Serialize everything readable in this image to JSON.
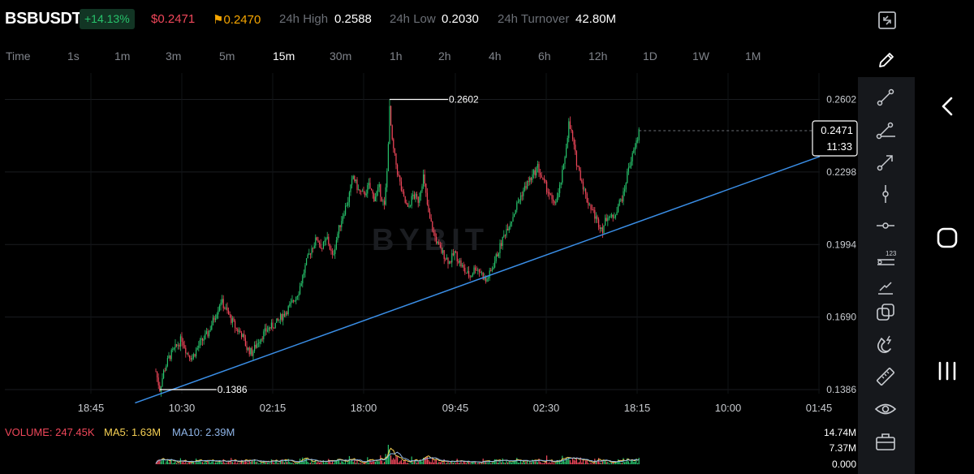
{
  "header": {
    "symbol": "BSBUSDT",
    "change": "+14.13%",
    "last_price": "$0.2471",
    "mark_price": "0.2470",
    "high_label": "24h High",
    "high_value": "0.2588",
    "low_label": "24h Low",
    "low_value": "0.2030",
    "turnover_label": "24h Turnover",
    "turnover_value": "42.80M"
  },
  "timeframes": [
    "Time",
    "1s",
    "1m",
    "3m",
    "5m",
    "15m",
    "30m",
    "1h",
    "2h",
    "4h",
    "6h",
    "12h",
    "1D",
    "1W",
    "1M"
  ],
  "active_timeframe": "15m",
  "colors": {
    "up": "#27c26b",
    "down": "#f0475a",
    "trendline": "#3a8ee6",
    "mark": "#f7a600",
    "ma5": "#f7d154",
    "ma10": "#8fb5e8"
  },
  "volume_panel": {
    "volume_label": "VOLUME: 247.45K",
    "ma5_label": "MA5: 1.63M",
    "ma10_label": "MA10: 2.39M",
    "axis_ticks": [
      "14.74M",
      "7.37M",
      "0.000"
    ]
  },
  "chart_data": {
    "type": "candlestick",
    "y_ticks": [
      0.2602,
      0.2298,
      0.1994,
      0.169,
      0.1386
    ],
    "y_tick_labels": [
      "0.2602",
      "0.2298",
      "0.1994",
      "0.1690",
      "0.1386"
    ],
    "ylim": [
      0.1316,
      0.268
    ],
    "x_tick_labels": [
      "18:45",
      "10:30",
      "02:15",
      "18:00",
      "09:45",
      "02:30",
      "18:15",
      "10:00",
      "01:45"
    ],
    "high_annotation": "0.2602",
    "low_annotation": "0.1386",
    "last_price_tag": "0.2471",
    "countdown_tag": "11:33",
    "watermark": "BYBIT",
    "price_path": [
      [
        0,
        0.1462
      ],
      [
        3,
        0.1386
      ],
      [
        6,
        0.146
      ],
      [
        10,
        0.152
      ],
      [
        15,
        0.156
      ],
      [
        20,
        0.16
      ],
      [
        24,
        0.154
      ],
      [
        28,
        0.152
      ],
      [
        34,
        0.158
      ],
      [
        40,
        0.162
      ],
      [
        46,
        0.17
      ],
      [
        50,
        0.176
      ],
      [
        54,
        0.172
      ],
      [
        58,
        0.168
      ],
      [
        62,
        0.164
      ],
      [
        66,
        0.162
      ],
      [
        70,
        0.156
      ],
      [
        74,
        0.154
      ],
      [
        80,
        0.16
      ],
      [
        86,
        0.164
      ],
      [
        92,
        0.166
      ],
      [
        98,
        0.17
      ],
      [
        104,
        0.174
      ],
      [
        110,
        0.18
      ],
      [
        116,
        0.192
      ],
      [
        120,
        0.198
      ],
      [
        124,
        0.202
      ],
      [
        128,
        0.198
      ],
      [
        132,
        0.202
      ],
      [
        136,
        0.194
      ],
      [
        140,
        0.204
      ],
      [
        144,
        0.212
      ],
      [
        148,
        0.218
      ],
      [
        152,
        0.228
      ],
      [
        156,
        0.222
      ],
      [
        160,
        0.22
      ],
      [
        164,
        0.224
      ],
      [
        168,
        0.219
      ],
      [
        172,
        0.223
      ],
      [
        176,
        0.215
      ],
      [
        178,
        0.23
      ],
      [
        180,
        0.256
      ],
      [
        182,
        0.242
      ],
      [
        186,
        0.23
      ],
      [
        190,
        0.22
      ],
      [
        194,
        0.214
      ],
      [
        198,
        0.22
      ],
      [
        202,
        0.218
      ],
      [
        206,
        0.228
      ],
      [
        210,
        0.212
      ],
      [
        214,
        0.204
      ],
      [
        218,
        0.198
      ],
      [
        222,
        0.195
      ],
      [
        226,
        0.192
      ],
      [
        230,
        0.196
      ],
      [
        234,
        0.192
      ],
      [
        238,
        0.188
      ],
      [
        242,
        0.186
      ],
      [
        246,
        0.19
      ],
      [
        250,
        0.188
      ],
      [
        254,
        0.184
      ],
      [
        258,
        0.188
      ],
      [
        262,
        0.194
      ],
      [
        266,
        0.2
      ],
      [
        270,
        0.206
      ],
      [
        274,
        0.21
      ],
      [
        278,
        0.216
      ],
      [
        282,
        0.221
      ],
      [
        286,
        0.225
      ],
      [
        290,
        0.228
      ],
      [
        294,
        0.232
      ],
      [
        298,
        0.226
      ],
      [
        302,
        0.222
      ],
      [
        306,
        0.216
      ],
      [
        310,
        0.22
      ],
      [
        314,
        0.232
      ],
      [
        318,
        0.25
      ],
      [
        320,
        0.246
      ],
      [
        324,
        0.234
      ],
      [
        328,
        0.226
      ],
      [
        332,
        0.218
      ],
      [
        336,
        0.214
      ],
      [
        340,
        0.209
      ],
      [
        344,
        0.206
      ],
      [
        348,
        0.212
      ],
      [
        352,
        0.21
      ],
      [
        356,
        0.216
      ],
      [
        360,
        0.22
      ],
      [
        364,
        0.232
      ],
      [
        368,
        0.238
      ],
      [
        371,
        0.244
      ],
      [
        372,
        0.2471
      ]
    ],
    "bar_count": 373,
    "high_bar": 180,
    "low_bar": 3,
    "trendline": [
      [
        -16,
        0.133
      ],
      [
        372,
        0.209
      ]
    ]
  }
}
